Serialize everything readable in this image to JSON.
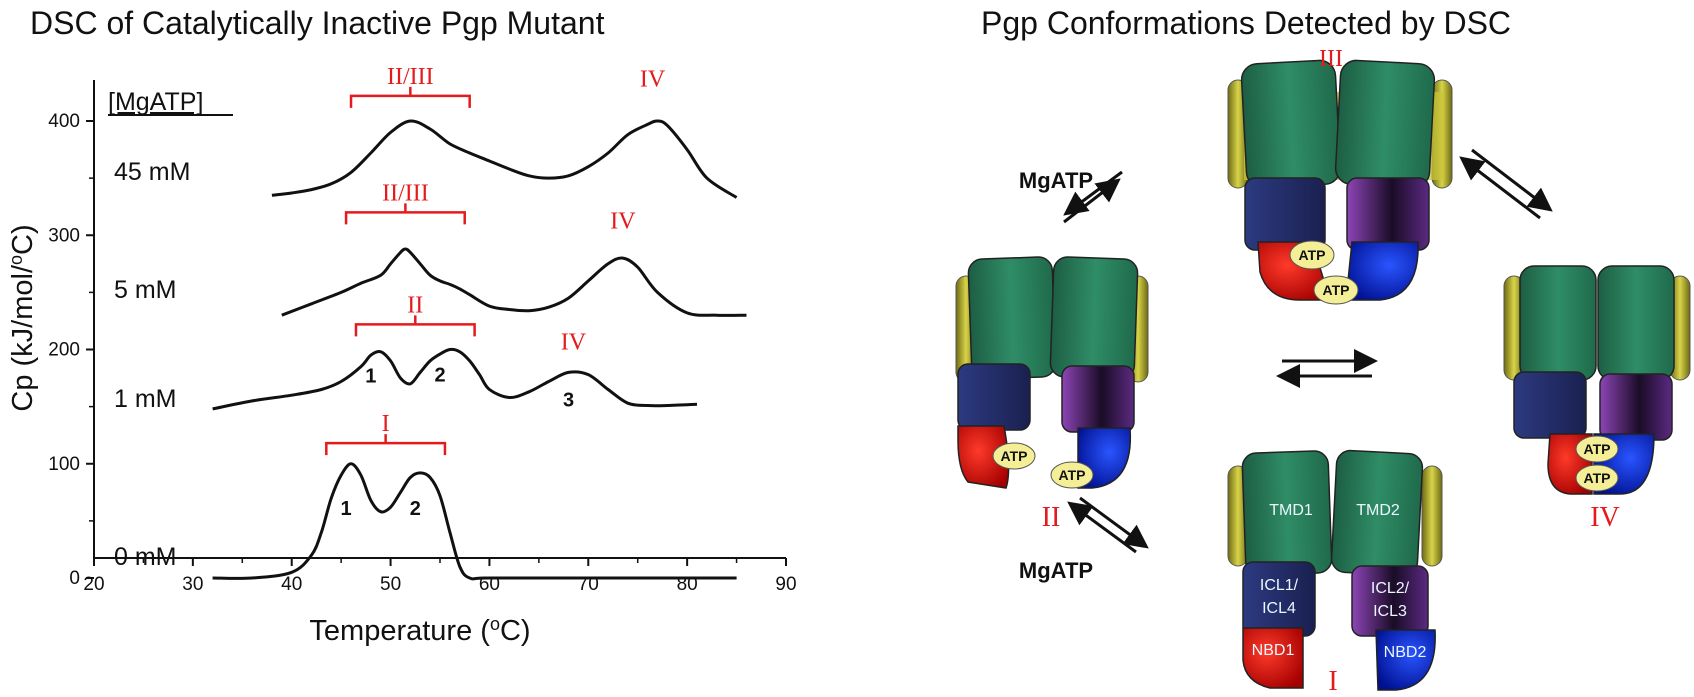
{
  "chart_data": {
    "type": "line",
    "title": "DSC of Catalytically Inactive Pgp Mutant",
    "xlabel": "Temperature (oC)",
    "ylabel": "Cp (kJ/mol/oC)",
    "xlim": [
      20,
      90
    ],
    "ylim": [
      -20,
      430
    ],
    "xticks": [
      "20",
      "30",
      "40",
      "50",
      "60",
      "70",
      "80",
      "90"
    ],
    "yticks": [
      "0",
      "100",
      "200",
      "300",
      "400"
    ],
    "legend_title": "[MgATP]",
    "series": [
      {
        "name": "45 mM",
        "x": [
          38,
          40,
          42,
          44,
          46,
          48,
          50,
          52,
          54,
          56,
          58,
          60,
          62,
          64,
          66,
          68,
          70,
          72,
          74,
          76,
          77,
          78,
          80,
          82,
          85
        ],
        "y": [
          335,
          337,
          340,
          345,
          355,
          372,
          390,
          400,
          393,
          380,
          372,
          365,
          358,
          352,
          350,
          352,
          360,
          372,
          388,
          397,
          400,
          396,
          375,
          350,
          333
        ]
      },
      {
        "name": "5 mM",
        "x": [
          39,
          42,
          45,
          47,
          49,
          50,
          51,
          51.5,
          52,
          53,
          54,
          55,
          56,
          57,
          58,
          60,
          62,
          64,
          66,
          68,
          70,
          72,
          73.5,
          75,
          77,
          80,
          83,
          86
        ],
        "y": [
          230,
          240,
          250,
          258,
          265,
          275,
          285,
          288,
          285,
          275,
          265,
          260,
          257,
          253,
          248,
          238,
          235,
          234,
          237,
          245,
          260,
          275,
          280,
          272,
          250,
          232,
          230,
          230
        ]
      },
      {
        "name": "1 mM",
        "x": [
          32,
          36,
          40,
          43,
          45,
          47,
          48,
          49,
          50,
          51,
          52,
          53,
          54,
          55,
          56,
          57,
          58,
          59,
          60,
          62,
          64,
          66,
          68,
          70,
          72,
          74,
          76,
          78,
          81
        ],
        "y": [
          148,
          155,
          160,
          165,
          172,
          185,
          195,
          198,
          190,
          175,
          170,
          180,
          190,
          196,
          200,
          198,
          190,
          178,
          165,
          158,
          163,
          172,
          180,
          178,
          165,
          153,
          151,
          151,
          152
        ]
      },
      {
        "name": "0 mM",
        "x": [
          32,
          36,
          40,
          42,
          43,
          44,
          45,
          46,
          47,
          48,
          49,
          50,
          51,
          52,
          53,
          54,
          55,
          56,
          57,
          58,
          60,
          70,
          85
        ],
        "y": [
          0,
          0,
          5,
          20,
          40,
          70,
          90,
          100,
          90,
          68,
          58,
          62,
          75,
          88,
          92,
          88,
          72,
          40,
          10,
          0,
          0,
          0,
          0
        ]
      }
    ],
    "peak_brackets": [
      {
        "label": "II/III",
        "x_from": 46,
        "x_to": 58,
        "y": 422
      },
      {
        "label": "II/III",
        "x_from": 45.5,
        "x_to": 57.5,
        "y": 320
      },
      {
        "label": "II",
        "x_from": 46.5,
        "x_to": 58.5,
        "y": 222
      },
      {
        "label": "I",
        "x_from": 43.5,
        "x_to": 55.5,
        "y": 118
      }
    ],
    "state_labels": [
      {
        "label": "IV",
        "x": 76.5,
        "y": 430
      },
      {
        "label": "IV",
        "x": 73.5,
        "y": 306
      },
      {
        "label": "IV",
        "x": 68.5,
        "y": 200
      }
    ],
    "peak_numbers": [
      {
        "label": "1",
        "x": 48,
        "y": 171
      },
      {
        "label": "2",
        "x": 55,
        "y": 172
      },
      {
        "label": "3",
        "x": 68,
        "y": 150
      },
      {
        "label": "1",
        "x": 45.5,
        "y": 55
      },
      {
        "label": "2",
        "x": 52.5,
        "y": 55
      }
    ]
  },
  "diagram": {
    "title": "Pgp Conformations Detected by DSC",
    "states": {
      "I": "I",
      "II": "II",
      "III": "III",
      "IV": "IV"
    },
    "arrow_label_top": "MgATP",
    "arrow_label_bottom": "MgATP",
    "atp_label": "ATP",
    "domains": {
      "tmd1": "TMD1",
      "tmd2": "TMD2",
      "icl_left_a": "ICL1/",
      "icl_left_b": "ICL4",
      "icl_right_a": "ICL2/",
      "icl_right_b": "ICL3",
      "nbd1": "NBD1",
      "nbd2": "NBD2"
    },
    "colors": {
      "tmd": "#2e8a63",
      "membrane": "#c9c43a",
      "icl_left": "#25306c",
      "icl_right": "#7b3aa0",
      "nbd1": "#e11a1a",
      "nbd2": "#0b2de8",
      "atp": "#f4ee96",
      "accent_red": "#e41a1c"
    }
  }
}
